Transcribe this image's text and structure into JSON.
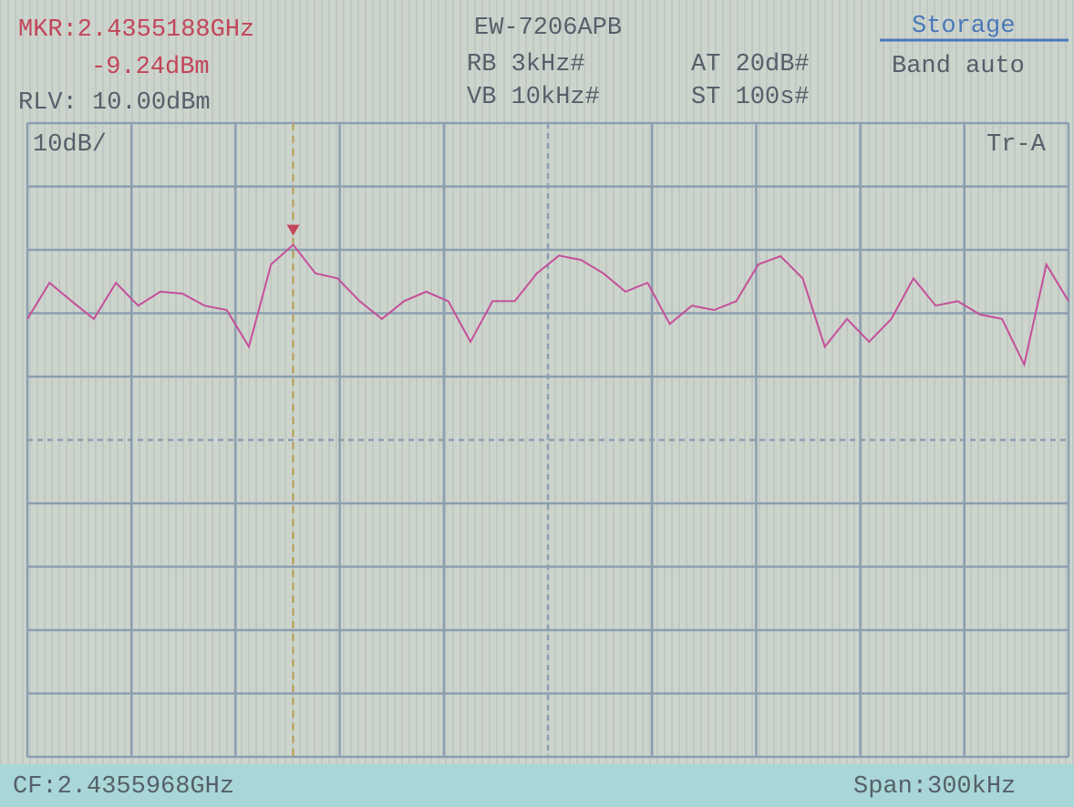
{
  "header": {
    "marker_freq": "MKR:2.4355188GHz",
    "marker_level": "-9.24dBm",
    "ref_level": "RLV: 10.00dBm",
    "model": "EW-7206APB",
    "rbw": "RB 3kHz#",
    "atten": "AT 20dB#",
    "vbw": "VB 10kHz#",
    "sweep": "ST 100s#",
    "mode": "Storage",
    "band": "Band auto"
  },
  "plot": {
    "scale": "10dB/",
    "trace_name": "Tr-A"
  },
  "footer": {
    "center_freq": "CF:2.4355968GHz",
    "span": "Span:300kHz"
  },
  "trace": {
    "color": "#c4509a",
    "ylim": [
      -90,
      10
    ],
    "values": [
      -20.9,
      -15.2,
      -18.1,
      -20.9,
      -15.2,
      -18.8,
      -16.6,
      -16.9,
      -18.8,
      -19.5,
      -25.3,
      -12.3,
      -9.2,
      -13.7,
      -14.5,
      -18.1,
      -20.9,
      -18.1,
      -16.6,
      -18.1,
      -24.5,
      -18.1,
      -18.1,
      -13.7,
      -10.9,
      -11.6,
      -13.7,
      -16.6,
      -15.2,
      -21.7,
      -18.8,
      -19.5,
      -18.1,
      -12.3,
      -11.0,
      -14.5,
      -25.3,
      -20.9,
      -24.5,
      -20.9,
      -14.5,
      -18.8,
      -18.1,
      -20.2,
      -20.9,
      -28.1,
      -12.3,
      -18.1
    ]
  }
}
